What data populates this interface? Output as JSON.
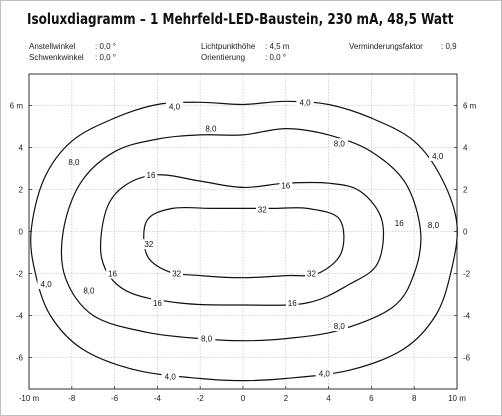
{
  "title": "Isoluxdiagramm – 1 Mehrfeld-LED-Baustein, 230 mA, 48,5 Watt",
  "params": [
    {
      "label": "Anstellwinkel",
      "value": ": 0,0 °"
    },
    {
      "label": "Schwenkwinkel",
      "value": ": 0,0 °"
    },
    {
      "label": "Lichtpunkthöhe",
      "value": ": 4,5 m"
    },
    {
      "label": "Orientierung",
      "value": ": 0,0 °"
    },
    {
      "label": "Verminderungsfaktor",
      "value": ": 0,9"
    }
  ],
  "chart_data": {
    "type": "contour",
    "xlim": [
      -10,
      10
    ],
    "ylim": [
      -7.5,
      7.5
    ],
    "grid": true,
    "xticks": [
      -10,
      -8,
      -6,
      -4,
      -2,
      0,
      2,
      4,
      6,
      8,
      10
    ],
    "xtick_labels": [
      "-10 m",
      "-8",
      "-6",
      "-4",
      "-2",
      "0",
      "2",
      "4",
      "6",
      "8",
      "10 m"
    ],
    "yticks": [
      6,
      4,
      2,
      0,
      -2,
      -4,
      -6
    ],
    "ytick_labels": [
      "6 m",
      "4",
      "2",
      "0",
      "-2",
      "-4",
      "-6"
    ],
    "contours": [
      {
        "level": 4,
        "label": "4,0",
        "points": [
          [
            0,
            6.05
          ],
          [
            2,
            6.2
          ],
          [
            4,
            6.05
          ],
          [
            6,
            5.4
          ],
          [
            8,
            4.3
          ],
          [
            9.3,
            2.5
          ],
          [
            10,
            0.3
          ],
          [
            9.7,
            -2
          ],
          [
            9,
            -4
          ],
          [
            7.5,
            -5.6
          ],
          [
            5,
            -6.6
          ],
          [
            2,
            -7
          ],
          [
            0,
            -7.1
          ],
          [
            -2,
            -7
          ],
          [
            -5,
            -6.6
          ],
          [
            -7.5,
            -5.6
          ],
          [
            -9,
            -4
          ],
          [
            -9.7,
            -2
          ],
          [
            -9.9,
            0
          ],
          [
            -9.3,
            2.5
          ],
          [
            -8,
            4.3
          ],
          [
            -6,
            5.4
          ],
          [
            -4,
            6.05
          ],
          [
            -2,
            6.15
          ]
        ],
        "labels": [
          [
            -3.2,
            5.95
          ],
          [
            2.9,
            6.15
          ],
          [
            9.1,
            3.6
          ],
          [
            -9.2,
            -2.5
          ],
          [
            -3.4,
            -6.9
          ],
          [
            3.8,
            -6.75
          ]
        ]
      },
      {
        "level": 8,
        "label": "8,0",
        "points": [
          [
            0,
            4.6
          ],
          [
            2,
            4.9
          ],
          [
            4,
            4.6
          ],
          [
            6,
            3.8
          ],
          [
            7.6,
            2.3
          ],
          [
            8.3,
            0
          ],
          [
            8,
            -2
          ],
          [
            7,
            -3.6
          ],
          [
            4.5,
            -4.7
          ],
          [
            2,
            -5.1
          ],
          [
            0,
            -5.2
          ],
          [
            -2,
            -5.1
          ],
          [
            -4.5,
            -4.8
          ],
          [
            -7,
            -4
          ],
          [
            -8.3,
            -2.2
          ],
          [
            -8.4,
            0
          ],
          [
            -7.6,
            2.3
          ],
          [
            -6,
            3.8
          ],
          [
            -4,
            4.4
          ],
          [
            -2,
            4.6
          ]
        ],
        "labels": [
          [
            -1.5,
            4.9
          ],
          [
            4.5,
            4.2
          ],
          [
            -7.9,
            3.3
          ],
          [
            8.9,
            0.3
          ],
          [
            -7.2,
            -2.8
          ],
          [
            -1.7,
            -5.1
          ],
          [
            4.5,
            -4.5
          ]
        ]
      },
      {
        "level": 16,
        "label": "16",
        "points": [
          [
            0,
            2.1
          ],
          [
            2,
            2.3
          ],
          [
            4,
            2.3
          ],
          [
            5.5,
            1.9
          ],
          [
            6.5,
            0.5
          ],
          [
            6.3,
            -1.5
          ],
          [
            5,
            -2.5
          ],
          [
            3,
            -3.4
          ],
          [
            0,
            -3.5
          ],
          [
            -3,
            -3.4
          ],
          [
            -5.5,
            -2.8
          ],
          [
            -6.6,
            -1.3
          ],
          [
            -6.4,
            1
          ],
          [
            -5.5,
            2.2
          ],
          [
            -4,
            2.7
          ],
          [
            -2,
            2.4
          ]
        ],
        "labels": [
          [
            -4.3,
            2.7
          ],
          [
            2,
            2.2
          ],
          [
            7.3,
            0.4
          ],
          [
            -6.1,
            -2
          ],
          [
            -4,
            -3.4
          ],
          [
            2.3,
            -3.4
          ]
        ]
      },
      {
        "level": 32,
        "label": "32",
        "points": [
          [
            0,
            1.1
          ],
          [
            1.5,
            1.1
          ],
          [
            3,
            1.1
          ],
          [
            4.5,
            0.6
          ],
          [
            4.6,
            -1
          ],
          [
            3.5,
            -2
          ],
          [
            2,
            -2.1
          ],
          [
            0,
            -2.2
          ],
          [
            -2,
            -2.1
          ],
          [
            -3.5,
            -1.9
          ],
          [
            -4.5,
            -1.1
          ],
          [
            -4.5,
            0.5
          ],
          [
            -3.3,
            1.1
          ],
          [
            -1.5,
            1.1
          ]
        ],
        "labels": [
          [
            0.9,
            1.05
          ],
          [
            -4.4,
            -0.6
          ],
          [
            -3.1,
            -2
          ],
          [
            3.2,
            -2
          ]
        ]
      }
    ]
  }
}
